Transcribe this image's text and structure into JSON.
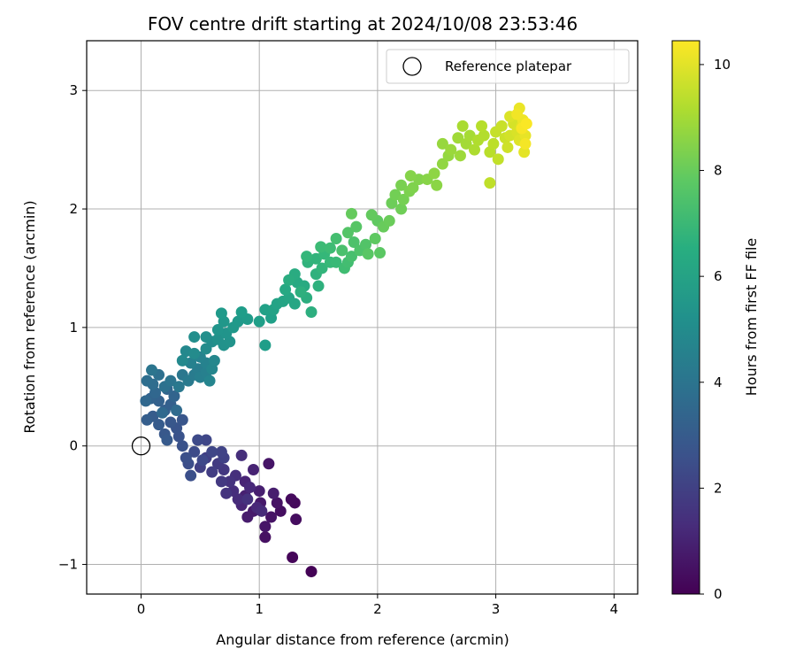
{
  "chart_data": {
    "type": "scatter",
    "title": "FOV centre drift starting at 2024/10/08 23:53:46",
    "xlabel": "Angular distance from reference (arcmin)",
    "ylabel": "Rotation from reference (arcmin)",
    "xlim": [
      -0.46,
      4.2
    ],
    "ylim": [
      -1.25,
      3.42
    ],
    "xticks": [
      0,
      1,
      2,
      3,
      4
    ],
    "xtick_labels": [
      "0",
      "1",
      "2",
      "3",
      "4"
    ],
    "yticks": [
      -1,
      0,
      1,
      2,
      3
    ],
    "ytick_labels": [
      "−1",
      "0",
      "1",
      "2",
      "3"
    ],
    "grid": true,
    "legend": {
      "position": "upper right",
      "label": "Reference platepar"
    },
    "reference_point": {
      "x": 0,
      "y": 0
    },
    "colorbar": {
      "label": "Hours from first FF file",
      "colormap": "viridis",
      "range": [
        0,
        10.45
      ],
      "ticks": [
        0,
        2,
        4,
        6,
        8,
        10
      ],
      "tick_labels": [
        "0",
        "2",
        "4",
        "6",
        "8",
        "10"
      ]
    },
    "series": [
      {
        "description": "drift points: [x, y, hours]",
        "points": [
          [
            1.44,
            -1.06,
            0.05
          ],
          [
            1.28,
            -0.94,
            0.15
          ],
          [
            1.3,
            -0.48,
            0.25
          ],
          [
            1.27,
            -0.45,
            0.3
          ],
          [
            1.31,
            -0.62,
            0.35
          ],
          [
            1.18,
            -0.55,
            0.4
          ],
          [
            1.05,
            -0.77,
            0.45
          ],
          [
            1.15,
            -0.48,
            0.5
          ],
          [
            1.1,
            -0.6,
            0.55
          ],
          [
            1.05,
            -0.68,
            0.6
          ],
          [
            1.08,
            -0.15,
            0.6
          ],
          [
            1.01,
            -0.48,
            0.7
          ],
          [
            0.95,
            -0.55,
            0.75
          ],
          [
            0.9,
            -0.6,
            0.8
          ],
          [
            1.12,
            -0.4,
            0.85
          ],
          [
            1.0,
            -0.38,
            0.9
          ],
          [
            0.88,
            -0.42,
            0.95
          ],
          [
            0.95,
            -0.2,
            1.0
          ],
          [
            0.88,
            -0.3,
            1.05
          ],
          [
            0.85,
            -0.5,
            1.1
          ],
          [
            0.98,
            -0.52,
            1.15
          ],
          [
            0.92,
            -0.35,
            1.2
          ],
          [
            1.02,
            -0.55,
            1.25
          ],
          [
            0.82,
            -0.45,
            1.3
          ],
          [
            0.78,
            -0.38,
            1.35
          ],
          [
            0.85,
            -0.08,
            1.4
          ],
          [
            0.8,
            -0.25,
            1.45
          ],
          [
            0.9,
            -0.45,
            1.5
          ],
          [
            0.75,
            -0.3,
            1.55
          ],
          [
            0.72,
            -0.4,
            1.6
          ],
          [
            0.7,
            -0.2,
            1.7
          ],
          [
            0.68,
            -0.3,
            1.75
          ],
          [
            0.65,
            -0.15,
            1.8
          ],
          [
            0.6,
            -0.22,
            1.9
          ],
          [
            0.55,
            -0.1,
            1.95
          ],
          [
            0.5,
            -0.18,
            2.0
          ],
          [
            0.7,
            -0.1,
            2.05
          ],
          [
            0.68,
            -0.05,
            2.1
          ],
          [
            0.6,
            -0.05,
            2.2
          ],
          [
            0.55,
            0.05,
            2.25
          ],
          [
            0.52,
            -0.12,
            2.3
          ],
          [
            0.48,
            0.05,
            2.35
          ],
          [
            0.45,
            -0.05,
            2.4
          ],
          [
            0.4,
            -0.15,
            2.5
          ],
          [
            0.42,
            -0.25,
            2.55
          ],
          [
            0.38,
            -0.1,
            2.6
          ],
          [
            0.35,
            0.0,
            2.65
          ],
          [
            0.32,
            0.08,
            2.7
          ],
          [
            0.3,
            0.15,
            2.75
          ],
          [
            0.35,
            0.22,
            2.8
          ],
          [
            0.25,
            0.2,
            2.85
          ],
          [
            0.2,
            0.1,
            2.9
          ],
          [
            0.22,
            0.05,
            2.95
          ],
          [
            0.15,
            0.18,
            3.0
          ],
          [
            0.1,
            0.25,
            3.05
          ],
          [
            0.05,
            0.22,
            3.1
          ],
          [
            0.2,
            0.3,
            3.15
          ],
          [
            0.25,
            0.35,
            3.2
          ],
          [
            0.15,
            0.38,
            3.25
          ],
          [
            0.08,
            0.4,
            3.3
          ],
          [
            0.28,
            0.42,
            3.35
          ],
          [
            0.22,
            0.48,
            3.4
          ],
          [
            0.12,
            0.45,
            3.45
          ],
          [
            0.04,
            0.38,
            3.5
          ],
          [
            0.18,
            0.28,
            3.55
          ],
          [
            0.3,
            0.3,
            3.6
          ],
          [
            0.1,
            0.52,
            3.7
          ],
          [
            0.05,
            0.55,
            3.75
          ],
          [
            0.15,
            0.6,
            3.85
          ],
          [
            0.2,
            0.5,
            3.9
          ],
          [
            0.25,
            0.55,
            4.0
          ],
          [
            0.09,
            0.64,
            4.05
          ],
          [
            0.35,
            0.6,
            4.15
          ],
          [
            0.32,
            0.5,
            4.2
          ],
          [
            0.4,
            0.55,
            4.3
          ],
          [
            0.45,
            0.6,
            4.35
          ],
          [
            0.48,
            0.65,
            4.4
          ],
          [
            0.5,
            0.58,
            4.5
          ],
          [
            0.55,
            0.62,
            4.55
          ],
          [
            0.42,
            0.7,
            4.6
          ],
          [
            0.55,
            0.7,
            4.65
          ],
          [
            0.5,
            0.75,
            4.7
          ],
          [
            0.58,
            0.55,
            4.75
          ],
          [
            0.6,
            0.65,
            4.8
          ],
          [
            0.62,
            0.72,
            4.85
          ],
          [
            0.38,
            0.8,
            4.9
          ],
          [
            0.35,
            0.72,
            4.95
          ],
          [
            0.45,
            0.78,
            5.0
          ],
          [
            0.55,
            0.82,
            5.05
          ],
          [
            0.6,
            0.88,
            5.1
          ],
          [
            0.45,
            0.92,
            5.15
          ],
          [
            0.55,
            0.92,
            5.2
          ],
          [
            0.65,
            0.9,
            5.25
          ],
          [
            0.7,
            0.85,
            5.3
          ],
          [
            0.75,
            0.88,
            5.35
          ],
          [
            0.72,
            0.95,
            5.4
          ],
          [
            0.65,
            0.98,
            5.45
          ],
          [
            0.7,
            1.05,
            5.5
          ],
          [
            0.78,
            1.0,
            5.55
          ],
          [
            0.82,
            1.05,
            5.6
          ],
          [
            0.68,
            1.12,
            5.65
          ],
          [
            0.9,
            1.07,
            5.7
          ],
          [
            0.85,
            1.13,
            5.75
          ],
          [
            1.05,
            0.85,
            5.8
          ],
          [
            1.0,
            1.05,
            5.85
          ],
          [
            1.1,
            1.08,
            5.9
          ],
          [
            1.05,
            1.15,
            5.95
          ],
          [
            1.12,
            1.15,
            6.0
          ],
          [
            1.15,
            1.2,
            6.05
          ],
          [
            1.2,
            1.22,
            6.1
          ],
          [
            1.25,
            1.25,
            6.15
          ],
          [
            1.3,
            1.2,
            6.2
          ],
          [
            1.22,
            1.32,
            6.25
          ],
          [
            1.32,
            1.38,
            6.3
          ],
          [
            1.38,
            1.35,
            6.35
          ],
          [
            1.3,
            1.45,
            6.4
          ],
          [
            1.25,
            1.4,
            6.45
          ],
          [
            1.4,
            1.25,
            6.5
          ],
          [
            1.44,
            1.13,
            6.55
          ],
          [
            1.35,
            1.3,
            6.6
          ],
          [
            1.5,
            1.35,
            6.65
          ],
          [
            1.48,
            1.45,
            6.7
          ],
          [
            1.41,
            1.55,
            6.75
          ],
          [
            1.48,
            1.58,
            6.8
          ],
          [
            1.53,
            1.5,
            6.85
          ],
          [
            1.4,
            1.6,
            6.9
          ],
          [
            1.55,
            1.62,
            6.95
          ],
          [
            1.6,
            1.55,
            7.0
          ],
          [
            1.65,
            1.55,
            7.05
          ],
          [
            1.52,
            1.68,
            7.1
          ],
          [
            1.6,
            1.67,
            7.15
          ],
          [
            1.72,
            1.5,
            7.2
          ],
          [
            1.75,
            1.55,
            7.25
          ],
          [
            1.65,
            1.75,
            7.3
          ],
          [
            1.78,
            1.6,
            7.35
          ],
          [
            1.7,
            1.65,
            7.4
          ],
          [
            1.8,
            1.72,
            7.45
          ],
          [
            1.85,
            1.65,
            7.5
          ],
          [
            1.9,
            1.7,
            7.55
          ],
          [
            1.75,
            1.8,
            7.6
          ],
          [
            1.82,
            1.85,
            7.65
          ],
          [
            1.92,
            1.62,
            7.7
          ],
          [
            2.02,
            1.63,
            7.75
          ],
          [
            1.98,
            1.75,
            7.8
          ],
          [
            2.0,
            1.9,
            7.85
          ],
          [
            1.95,
            1.95,
            7.9
          ],
          [
            1.78,
            1.96,
            7.95
          ],
          [
            2.05,
            1.85,
            8.0
          ],
          [
            2.1,
            1.9,
            8.05
          ],
          [
            2.12,
            2.05,
            8.1
          ],
          [
            2.2,
            2.0,
            8.15
          ],
          [
            2.15,
            2.12,
            8.2
          ],
          [
            2.22,
            2.08,
            8.25
          ],
          [
            2.2,
            2.2,
            8.3
          ],
          [
            2.27,
            2.15,
            8.35
          ],
          [
            2.3,
            2.18,
            8.4
          ],
          [
            2.35,
            2.25,
            8.45
          ],
          [
            2.28,
            2.28,
            8.5
          ],
          [
            2.42,
            2.25,
            8.55
          ],
          [
            2.5,
            2.2,
            8.6
          ],
          [
            2.48,
            2.3,
            8.65
          ],
          [
            2.55,
            2.38,
            8.7
          ],
          [
            2.6,
            2.45,
            8.75
          ],
          [
            2.55,
            2.55,
            8.8
          ],
          [
            2.62,
            2.5,
            8.85
          ],
          [
            2.7,
            2.45,
            8.9
          ],
          [
            2.68,
            2.6,
            8.95
          ],
          [
            2.75,
            2.55,
            9.0
          ],
          [
            2.78,
            2.62,
            9.05
          ],
          [
            2.72,
            2.7,
            9.1
          ],
          [
            2.82,
            2.5,
            9.15
          ],
          [
            2.85,
            2.58,
            9.2
          ],
          [
            2.9,
            2.62,
            9.25
          ],
          [
            2.88,
            2.7,
            9.3
          ],
          [
            2.95,
            2.48,
            9.35
          ],
          [
            2.98,
            2.55,
            9.4
          ],
          [
            2.95,
            2.22,
            9.45
          ],
          [
            3.02,
            2.42,
            9.5
          ],
          [
            3.0,
            2.65,
            9.55
          ],
          [
            3.05,
            2.7,
            9.6
          ],
          [
            3.08,
            2.6,
            9.65
          ],
          [
            3.1,
            2.52,
            9.7
          ],
          [
            3.12,
            2.62,
            9.75
          ],
          [
            3.15,
            2.72,
            9.8
          ],
          [
            3.18,
            2.65,
            9.85
          ],
          [
            3.12,
            2.78,
            9.9
          ],
          [
            3.2,
            2.58,
            9.95
          ],
          [
            3.22,
            2.7,
            10.0
          ],
          [
            3.24,
            2.48,
            10.05
          ],
          [
            3.25,
            2.62,
            10.1
          ],
          [
            3.2,
            2.85,
            10.15
          ],
          [
            3.23,
            2.75,
            10.2
          ],
          [
            3.18,
            2.8,
            10.25
          ],
          [
            3.25,
            2.55,
            10.3
          ],
          [
            3.22,
            2.68,
            10.35
          ],
          [
            3.26,
            2.72,
            10.4
          ]
        ]
      }
    ]
  }
}
